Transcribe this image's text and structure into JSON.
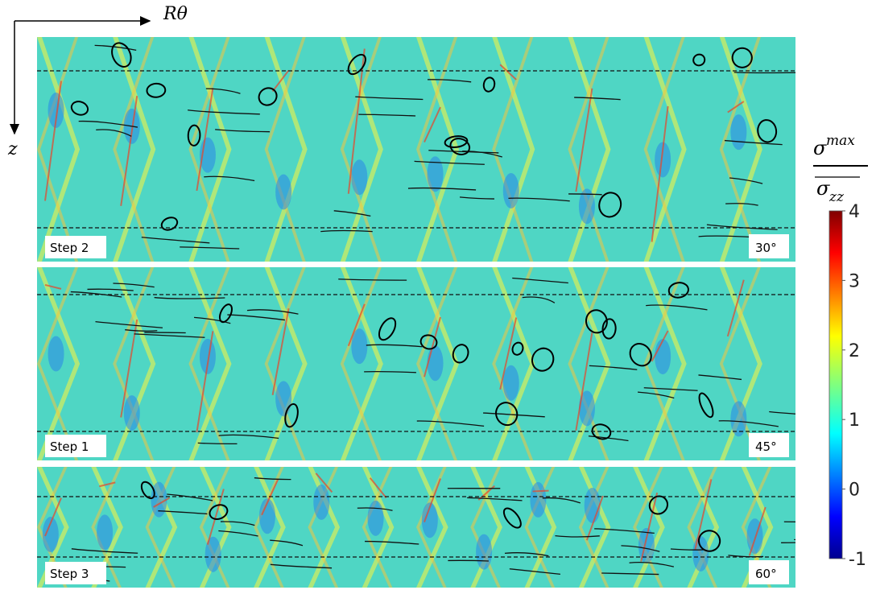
{
  "axes": {
    "horizontal": "Rθ",
    "vertical": "z"
  },
  "panels": [
    {
      "step": "Step 2",
      "angle": "30°"
    },
    {
      "step": "Step 1",
      "angle": "45°"
    },
    {
      "step": "Step 3",
      "angle": "60°"
    }
  ],
  "colorbar": {
    "numerator": "σ",
    "numerator_sup": "max",
    "denominator": "σ",
    "denominator_sub": "zz",
    "range": [
      -1,
      4
    ],
    "ticks": [
      -1,
      0,
      1,
      2,
      3,
      4
    ]
  }
}
